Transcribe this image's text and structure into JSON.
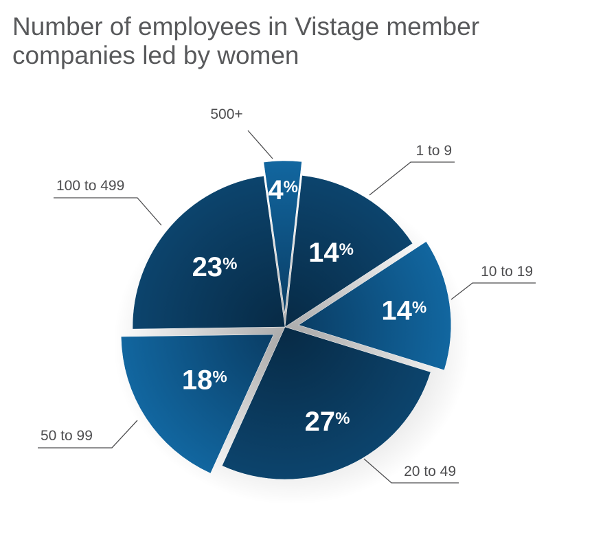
{
  "chart_data": {
    "type": "pie",
    "title": "Number of employees in Vistage member companies led by women",
    "start_angle_deg": -8,
    "direction": "clockwise",
    "slices": [
      {
        "label": "500+",
        "value": 4,
        "display": "4",
        "exploded": true
      },
      {
        "label": "1 to 9",
        "value": 14,
        "display": "14",
        "exploded": false
      },
      {
        "label": "10 to 19",
        "value": 14,
        "display": "14",
        "exploded": true
      },
      {
        "label": "20 to 49",
        "value": 27,
        "display": "27",
        "exploded": false
      },
      {
        "label": "50 to 99",
        "value": 18,
        "display": "18",
        "exploded": true
      },
      {
        "label": "100 to 499",
        "value": 23,
        "display": "23",
        "exploded": false
      }
    ],
    "percent_symbol": "%",
    "colors": {
      "dark": "#0b3a5e",
      "mid": "#0d4e7e",
      "light": "#11629a",
      "line": "#4d4d4f"
    }
  }
}
